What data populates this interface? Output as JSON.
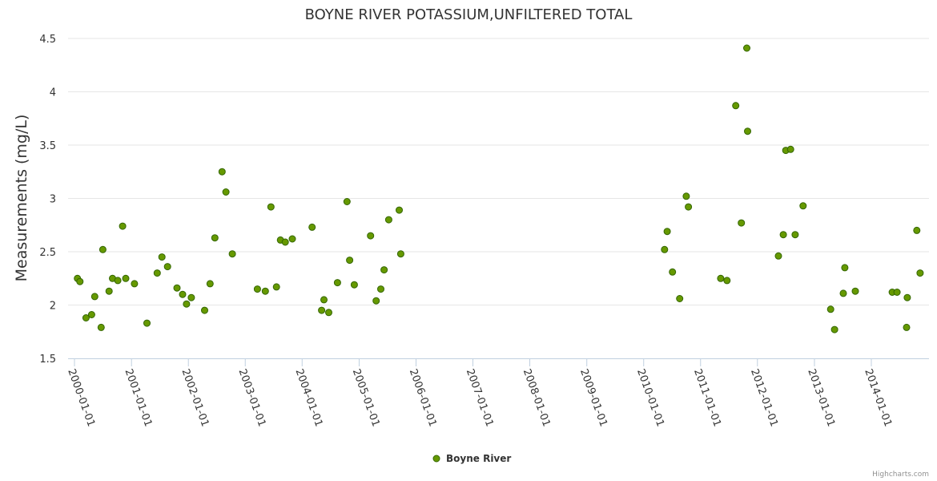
{
  "chart_data": {
    "type": "scatter",
    "title": "BOYNE RIVER POTASSIUM,UNFILTERED TOTAL",
    "xlabel": "",
    "ylabel": "Measurements (mg/L)",
    "ylim": [
      1.5,
      4.5
    ],
    "yticks": [
      "1.5",
      "2",
      "2.5",
      "3",
      "3.5",
      "4",
      "4.5"
    ],
    "xlim": [
      "2000-01-01",
      "2015-01-01"
    ],
    "xticks": [
      "2000-01-01",
      "2001-01-01",
      "2002-01-01",
      "2003-01-01",
      "2004-01-01",
      "2005-01-01",
      "2006-01-01",
      "2007-01-01",
      "2008-01-01",
      "2009-01-01",
      "2010-01-01",
      "2011-01-01",
      "2012-01-01",
      "2013-01-01",
      "2014-01-01"
    ],
    "grid": true,
    "legend": "bottom-center",
    "color": "#669900",
    "marker_fill": "#669900",
    "marker_stroke": "#336600",
    "series": [
      {
        "name": "Boyne River",
        "points": [
          [
            "2000-01-20",
            2.25
          ],
          [
            "2000-02-05",
            2.22
          ],
          [
            "2000-03-15",
            1.88
          ],
          [
            "2000-04-20",
            1.91
          ],
          [
            "2000-05-10",
            2.08
          ],
          [
            "2000-06-20",
            1.79
          ],
          [
            "2000-07-01",
            2.52
          ],
          [
            "2000-08-10",
            2.13
          ],
          [
            "2000-09-01",
            2.25
          ],
          [
            "2000-10-05",
            2.23
          ],
          [
            "2000-11-05",
            2.74
          ],
          [
            "2000-11-25",
            2.25
          ],
          [
            "2001-01-20",
            2.2
          ],
          [
            "2001-04-10",
            1.83
          ],
          [
            "2001-06-15",
            2.3
          ],
          [
            "2001-07-15",
            2.45
          ],
          [
            "2001-08-20",
            2.36
          ],
          [
            "2001-10-20",
            2.16
          ],
          [
            "2001-11-25",
            2.1
          ],
          [
            "2001-12-20",
            2.01
          ],
          [
            "2002-01-20",
            2.07
          ],
          [
            "2002-04-15",
            1.95
          ],
          [
            "2002-05-20",
            2.2
          ],
          [
            "2002-06-20",
            2.63
          ],
          [
            "2002-08-05",
            3.25
          ],
          [
            "2002-08-30",
            3.06
          ],
          [
            "2002-10-10",
            2.48
          ],
          [
            "2003-03-20",
            2.15
          ],
          [
            "2003-05-10",
            2.13
          ],
          [
            "2003-06-15",
            2.92
          ],
          [
            "2003-07-20",
            2.17
          ],
          [
            "2003-08-15",
            2.61
          ],
          [
            "2003-09-15",
            2.59
          ],
          [
            "2003-10-30",
            2.62
          ],
          [
            "2004-03-05",
            2.73
          ],
          [
            "2004-05-05",
            1.95
          ],
          [
            "2004-05-20",
            2.05
          ],
          [
            "2004-06-20",
            1.93
          ],
          [
            "2004-08-15",
            2.21
          ],
          [
            "2004-10-15",
            2.97
          ],
          [
            "2004-11-01",
            2.42
          ],
          [
            "2004-12-01",
            2.19
          ],
          [
            "2005-03-15",
            2.65
          ],
          [
            "2005-04-20",
            2.04
          ],
          [
            "2005-05-20",
            2.15
          ],
          [
            "2005-06-10",
            2.33
          ],
          [
            "2005-07-10",
            2.8
          ],
          [
            "2005-09-15",
            2.89
          ],
          [
            "2005-09-25",
            2.48
          ],
          [
            "2010-05-15",
            2.52
          ],
          [
            "2010-06-01",
            2.69
          ],
          [
            "2010-07-05",
            2.31
          ],
          [
            "2010-08-20",
            2.06
          ],
          [
            "2010-10-01",
            3.02
          ],
          [
            "2010-10-15",
            2.92
          ],
          [
            "2011-05-10",
            2.25
          ],
          [
            "2011-06-20",
            2.23
          ],
          [
            "2011-08-15",
            3.87
          ],
          [
            "2011-09-20",
            2.77
          ],
          [
            "2011-10-25",
            4.41
          ],
          [
            "2011-10-30",
            3.63
          ],
          [
            "2012-05-15",
            2.46
          ],
          [
            "2012-06-15",
            2.66
          ],
          [
            "2012-07-01",
            3.45
          ],
          [
            "2012-08-01",
            3.46
          ],
          [
            "2012-08-30",
            2.66
          ],
          [
            "2012-10-20",
            2.93
          ],
          [
            "2013-04-15",
            1.96
          ],
          [
            "2013-05-10",
            1.77
          ],
          [
            "2013-07-05",
            2.11
          ],
          [
            "2013-07-15",
            2.35
          ],
          [
            "2013-09-20",
            2.13
          ],
          [
            "2014-05-15",
            2.12
          ],
          [
            "2014-06-15",
            2.12
          ],
          [
            "2014-08-15",
            1.79
          ],
          [
            "2014-08-20",
            2.07
          ],
          [
            "2014-10-20",
            2.7
          ],
          [
            "2014-11-10",
            2.3
          ]
        ]
      }
    ]
  },
  "legend": {
    "label": "Boyne River"
  },
  "credits": {
    "label": "Highcharts.com"
  }
}
